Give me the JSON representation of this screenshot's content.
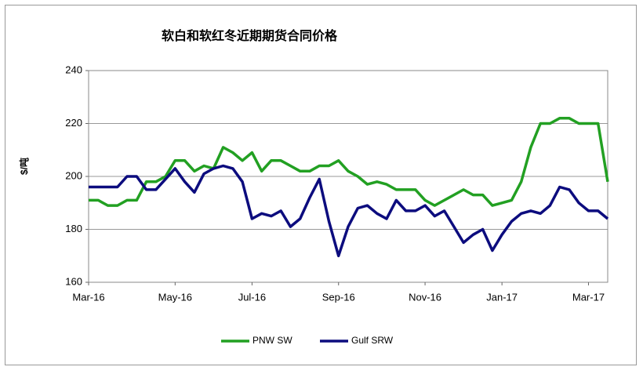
{
  "chart_data": {
    "type": "line",
    "title": "软白和软红冬近期期货合同价格",
    "y_label": "$/吨",
    "categories": [
      "Mar-16",
      null,
      null,
      null,
      null,
      null,
      null,
      null,
      null,
      "May-16",
      null,
      null,
      null,
      null,
      null,
      null,
      null,
      "Jul-16",
      null,
      null,
      null,
      null,
      null,
      null,
      null,
      null,
      "Sep-16",
      null,
      null,
      null,
      null,
      null,
      null,
      null,
      null,
      "Nov-16",
      null,
      null,
      null,
      null,
      null,
      null,
      null,
      "Jan-17",
      null,
      null,
      null,
      null,
      null,
      null,
      null,
      null,
      "Mar-17",
      null,
      null
    ],
    "series": [
      {
        "name": "PNW SW",
        "color": "#22a022",
        "values": [
          191,
          191,
          189,
          189,
          191,
          191,
          198,
          198,
          200,
          206,
          206,
          202,
          204,
          203,
          211,
          209,
          206,
          209,
          202,
          206,
          206,
          204,
          202,
          202,
          204,
          204,
          206,
          202,
          200,
          197,
          198,
          197,
          195,
          195,
          195,
          191,
          189,
          191,
          193,
          195,
          193,
          193,
          189,
          190,
          191,
          198,
          211,
          220,
          220,
          222,
          222,
          220,
          220,
          220,
          198
        ]
      },
      {
        "name": "Gulf SRW",
        "color": "#0c0c7e",
        "values": [
          196,
          196,
          196,
          196,
          200,
          200,
          195,
          195,
          199,
          203,
          198,
          194,
          201,
          203,
          204,
          203,
          198,
          184,
          186,
          185,
          187,
          181,
          184,
          192,
          199,
          183,
          170,
          181,
          188,
          189,
          186,
          184,
          191,
          187,
          187,
          189,
          185,
          187,
          181,
          175,
          178,
          180,
          172,
          178,
          183,
          186,
          187,
          186,
          189,
          196,
          195,
          190,
          187,
          187,
          184
        ]
      }
    ],
    "ylim": [
      160,
      240
    ],
    "yticks": [
      160,
      180,
      200,
      220,
      240
    ],
    "grid": true,
    "legend": "bottom"
  }
}
